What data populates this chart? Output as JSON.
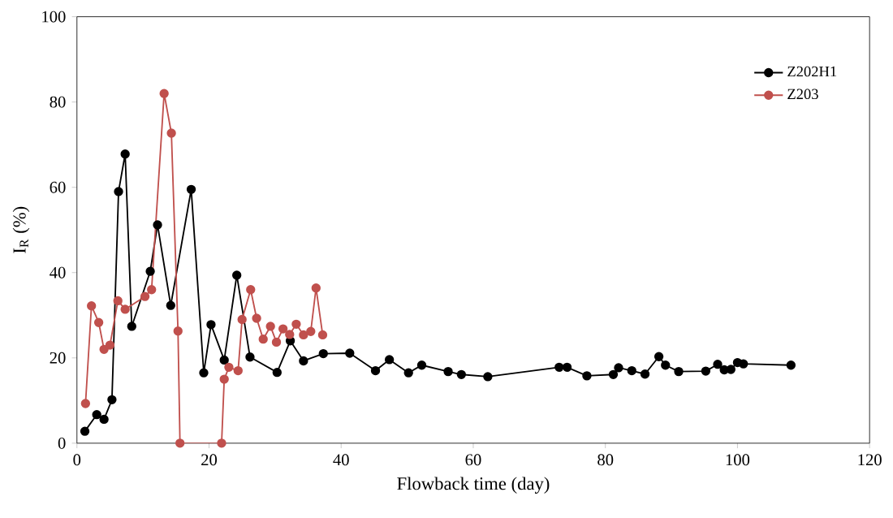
{
  "chart_data": {
    "type": "line",
    "xlabel": "Flowback time (day)",
    "ylabel": "I$_{R}$ (%)",
    "xlim": [
      0,
      120
    ],
    "ylim": [
      0,
      100
    ],
    "xticks": [
      0,
      20,
      40,
      60,
      80,
      100,
      120
    ],
    "yticks": [
      0,
      20,
      40,
      60,
      80,
      100
    ],
    "grid": false,
    "legend": "top right",
    "marker": "circle",
    "line_style": "solid",
    "series": [
      {
        "name": "Z202H1",
        "color": "#000000",
        "x": [
          1.2,
          3,
          4.1,
          5.3,
          6.3,
          7.3,
          8.3,
          11.1,
          12.2,
          14.2,
          17.3,
          19.2,
          20.3,
          22.3,
          24.2,
          26.2,
          30.3,
          32.3,
          34.3,
          37.3,
          41.3,
          45.2,
          47.3,
          50.2,
          52.2,
          56.2,
          58.2,
          62.2,
          73,
          74.2,
          77.2,
          81.2,
          82,
          84,
          86,
          88.1,
          89.1,
          91.1,
          95.2,
          97,
          98,
          99,
          100,
          100.9,
          108.1
        ],
        "values": [
          2.8,
          6.7,
          5.6,
          10.2,
          59,
          67.8,
          27.4,
          40.3,
          51.2,
          32.3,
          59.5,
          16.5,
          27.8,
          19.5,
          39.4,
          20.2,
          16.6,
          24,
          19.3,
          21,
          21.1,
          17,
          19.6,
          16.5,
          18.3,
          16.8,
          16.1,
          15.6,
          17.8,
          17.8,
          15.8,
          16.1,
          17.7,
          17,
          16.2,
          20.3,
          18.3,
          16.8,
          16.9,
          18.5,
          17.2,
          17.3,
          18.9,
          18.6,
          18.3
        ]
      },
      {
        "name": "Z203",
        "color": "#c0504d",
        "x": [
          1.3,
          2.2,
          3.3,
          4.1,
          5,
          6.2,
          7.3,
          10.3,
          11.3,
          13.2,
          14.3,
          15.3,
          15.6,
          21.9,
          22.3,
          23,
          24.4,
          25,
          26.3,
          27.2,
          28.2,
          29.3,
          30.2,
          31.2,
          32.2,
          33.2,
          34.3,
          35.4,
          36.2,
          37.2
        ],
        "values": [
          9.3,
          32.2,
          28.3,
          22,
          23,
          33.4,
          31.4,
          34.4,
          36,
          82,
          72.7,
          26.3,
          0,
          0,
          15,
          17.8,
          17,
          29,
          36,
          29.3,
          24.4,
          27.4,
          23.7,
          26.8,
          25.5,
          27.9,
          25.4,
          26.2,
          36.4,
          25.4
        ]
      }
    ]
  }
}
